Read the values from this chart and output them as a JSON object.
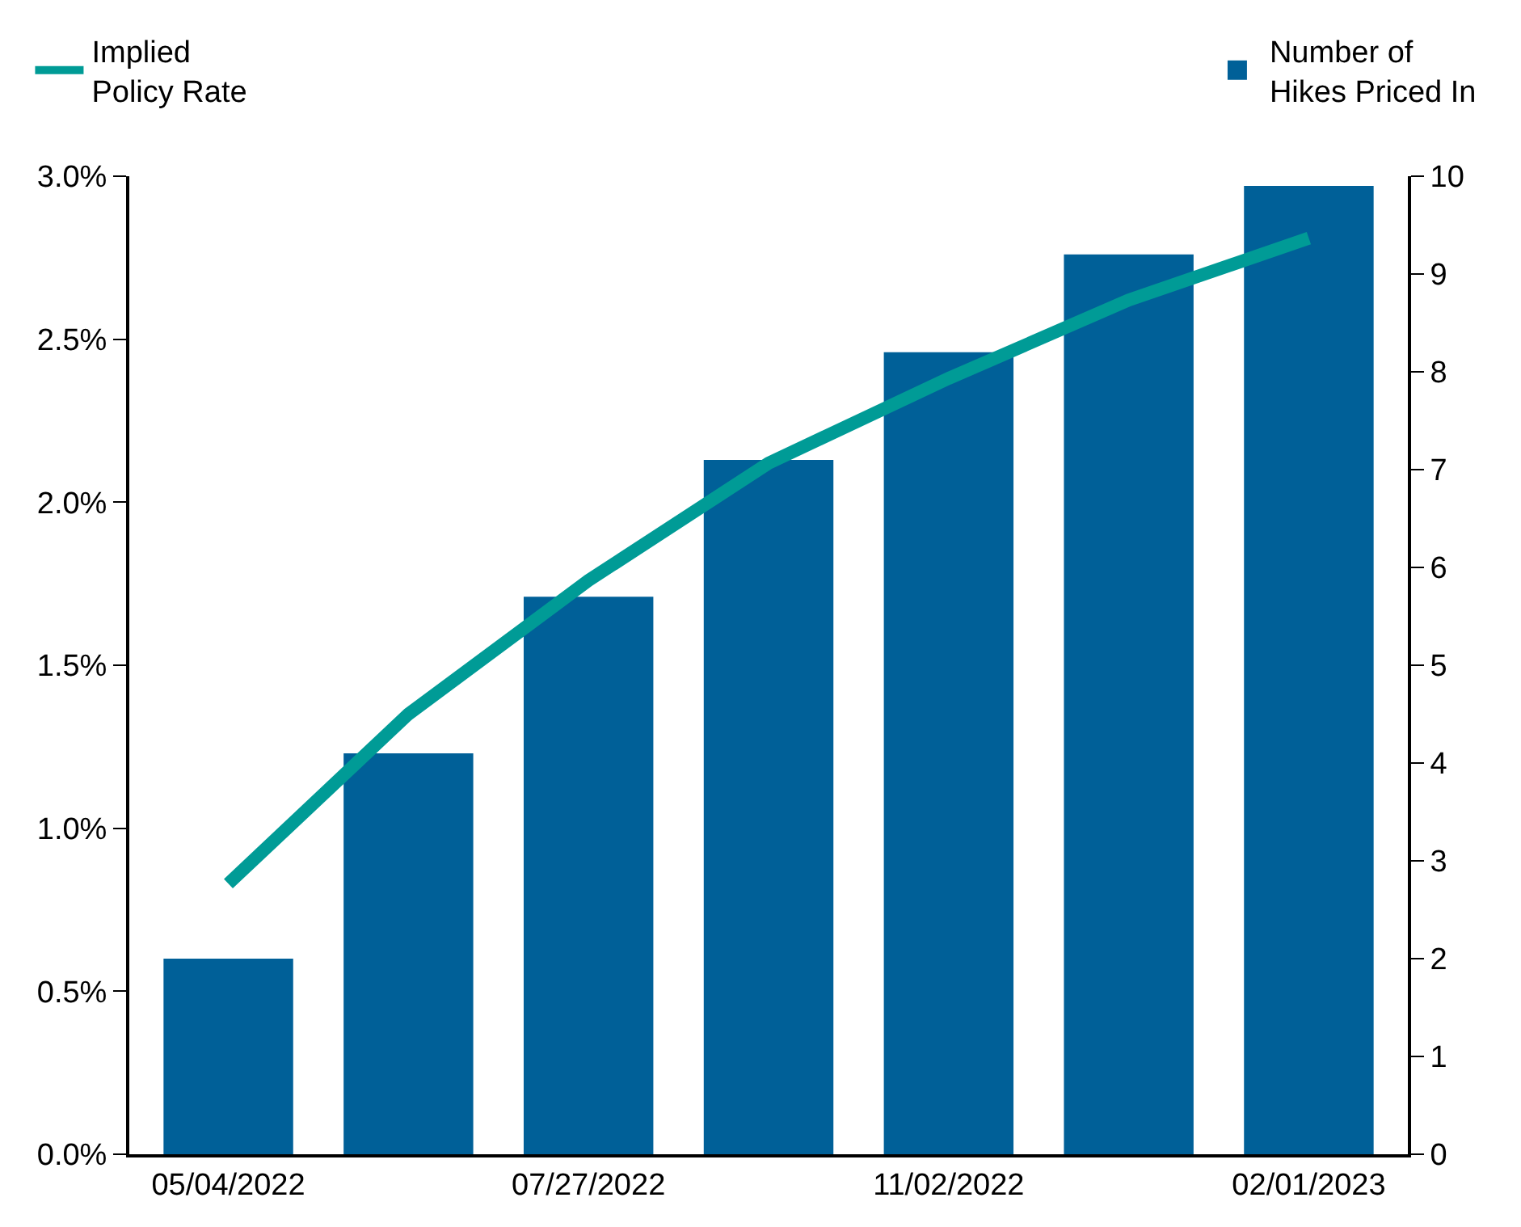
{
  "chart_data": {
    "type": "bar",
    "categories": [
      "05/04/2022",
      null,
      "07/27/2022",
      null,
      "11/02/2022",
      null,
      "02/01/2023"
    ],
    "series": [
      {
        "name": "Implied\nPolicy Rate",
        "type": "line",
        "color": "#009b96",
        "values": [
          0.83,
          1.35,
          1.76,
          2.12,
          2.38,
          2.62,
          2.81
        ]
      },
      {
        "name": "Number of\nHikes Priced In",
        "axis": "y2",
        "color": "#006098",
        "values": [
          2.0,
          4.1,
          5.7,
          7.1,
          8.2,
          9.2,
          9.9
        ]
      }
    ],
    "ylim": [
      0,
      3
    ],
    "yticks": [
      {
        "value": 0,
        "label": "0.0%"
      },
      {
        "value": 0.5,
        "label": "0.5%"
      },
      {
        "value": 1,
        "label": "1.0%"
      },
      {
        "value": 1.5,
        "label": "1.5%"
      },
      {
        "value": 2,
        "label": "2.0%"
      },
      {
        "value": 2.5,
        "label": "2.5%"
      },
      {
        "value": 3,
        "label": "3.0%"
      }
    ],
    "y2lim": [
      0,
      10
    ],
    "y2ticks": [
      0,
      1,
      2,
      3,
      4,
      5,
      6,
      7,
      8,
      9,
      10
    ],
    "legend": "top",
    "marker": "none",
    "line_style": "solid"
  }
}
